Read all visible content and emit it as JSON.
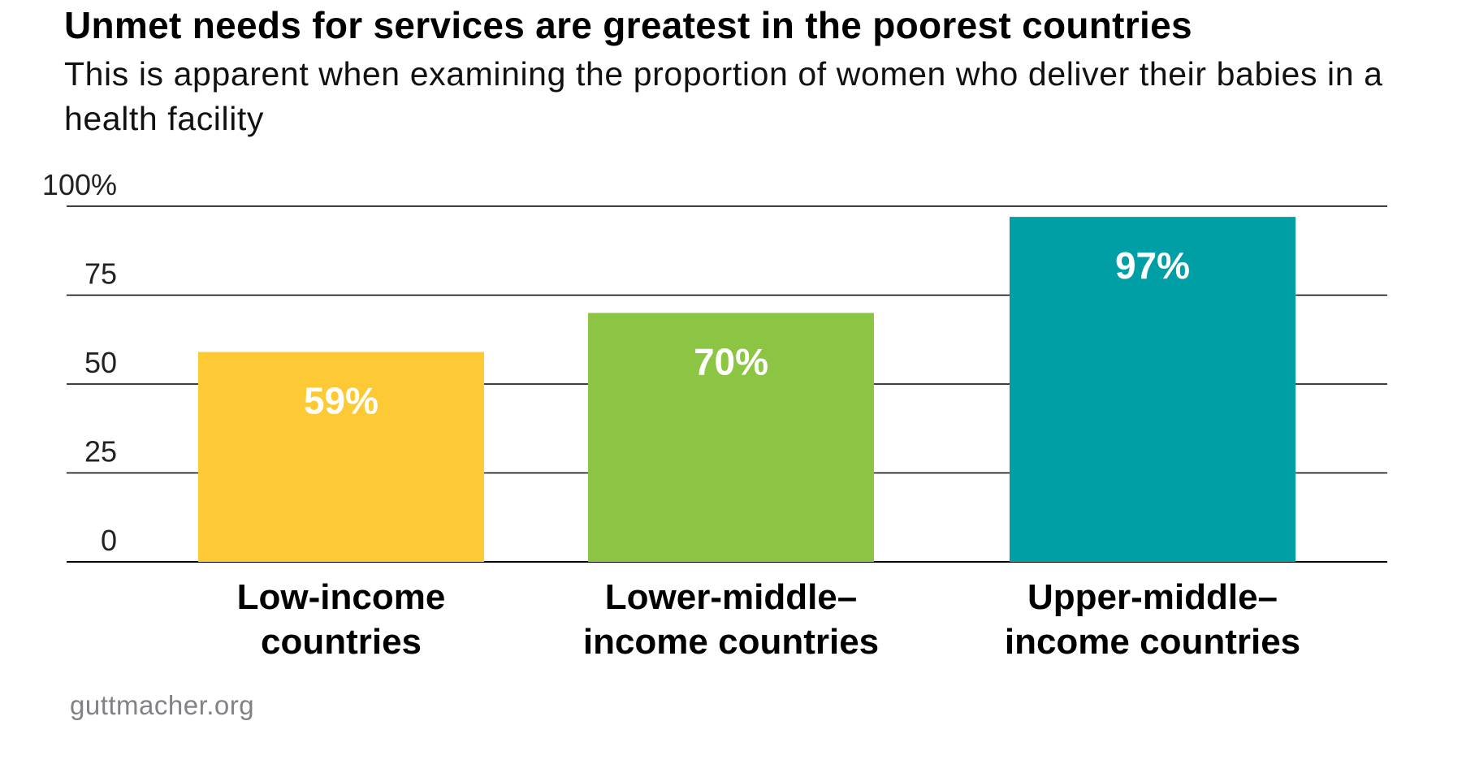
{
  "chart_data": {
    "type": "bar",
    "title": "Unmet needs for services are greatest in the poorest countries",
    "subtitle": "This is apparent when examining the proportion of women who deliver their babies in a health facility",
    "categories": [
      [
        "Low-income",
        "countries"
      ],
      [
        "Lower-middle–",
        "income countries"
      ],
      [
        "Upper-middle–",
        "income countries"
      ]
    ],
    "values": [
      59,
      70,
      97
    ],
    "value_labels": [
      "59%",
      "70%",
      "97%"
    ],
    "y_ticks": [
      0,
      25,
      50,
      75,
      100
    ],
    "y_tick_labels": [
      "0",
      "25",
      "50",
      "75",
      "100%"
    ],
    "ylim": [
      0,
      100
    ],
    "grid": true,
    "xlabel": "",
    "ylabel": "",
    "colors": [
      "#FDCA35",
      "#8CC443",
      "#009FA6"
    ],
    "value_label_color": "#FFFFFF"
  },
  "source": "guttmacher.org"
}
